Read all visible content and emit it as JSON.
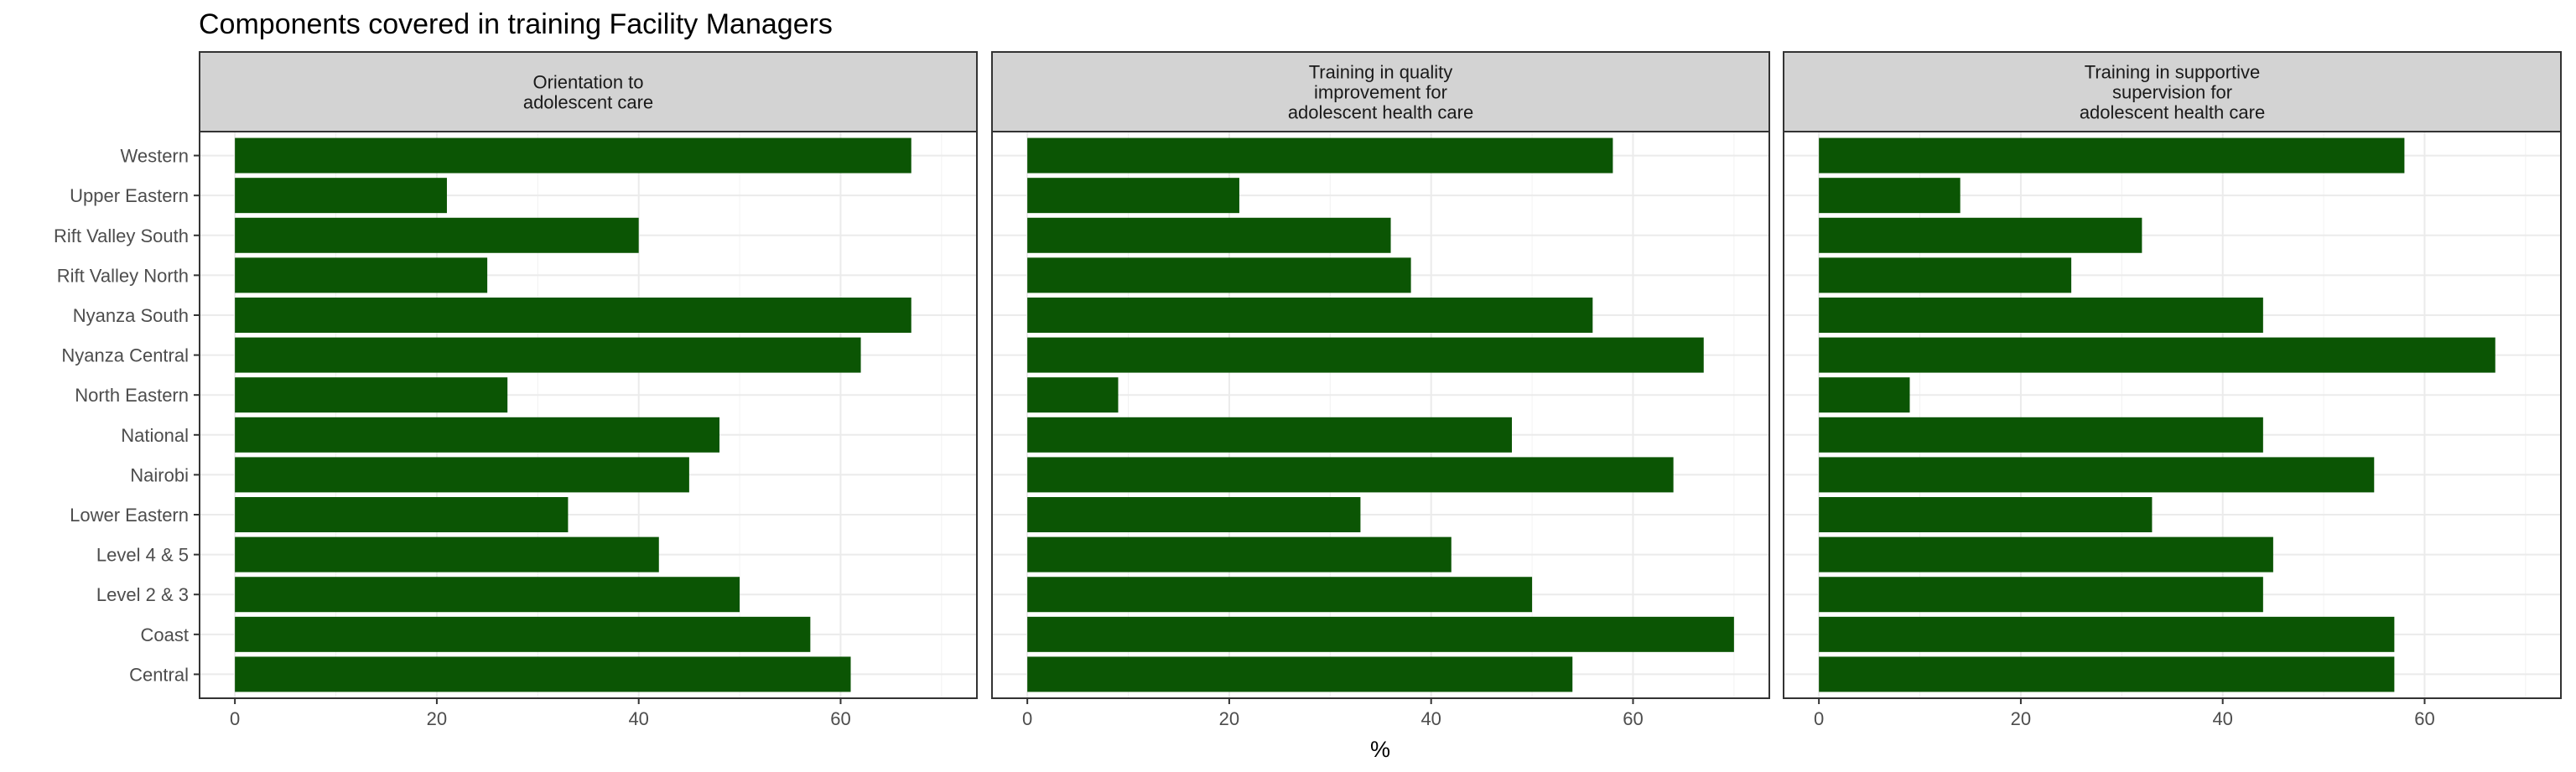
{
  "chart_data": {
    "type": "bar",
    "orientation": "horizontal",
    "title": "Components covered in training Facility Managers",
    "xlabel": "%",
    "ylabel": "",
    "xlim": [
      0,
      70
    ],
    "x_ticks": [
      0,
      20,
      40,
      60
    ],
    "grid": true,
    "legend": "none",
    "bar_color": "#0b5504",
    "categories": [
      "Western",
      "Upper Eastern",
      "Rift Valley South",
      "Rift Valley North",
      "Nyanza South",
      "Nyanza Central",
      "North Eastern",
      "National",
      "Nairobi",
      "Lower Eastern",
      "Level 4 & 5",
      "Level 2 & 3",
      "Coast",
      "Central"
    ],
    "panels": [
      {
        "strip_lines": [
          "Orientation to",
          "adolescent care"
        ],
        "values": [
          67,
          21,
          40,
          25,
          67,
          62,
          27,
          48,
          45,
          33,
          42,
          50,
          57,
          61
        ]
      },
      {
        "strip_lines": [
          "Training in quality",
          "improvement for",
          "adolescent health care"
        ],
        "values": [
          58,
          21,
          36,
          38,
          56,
          67,
          9,
          48,
          64,
          33,
          42,
          50,
          70,
          54
        ]
      },
      {
        "strip_lines": [
          "Training in supportive",
          "supervision for",
          "adolescent health care"
        ],
        "values": [
          58,
          14,
          32,
          25,
          44,
          67,
          9,
          44,
          55,
          33,
          45,
          44,
          57,
          57
        ]
      }
    ]
  }
}
